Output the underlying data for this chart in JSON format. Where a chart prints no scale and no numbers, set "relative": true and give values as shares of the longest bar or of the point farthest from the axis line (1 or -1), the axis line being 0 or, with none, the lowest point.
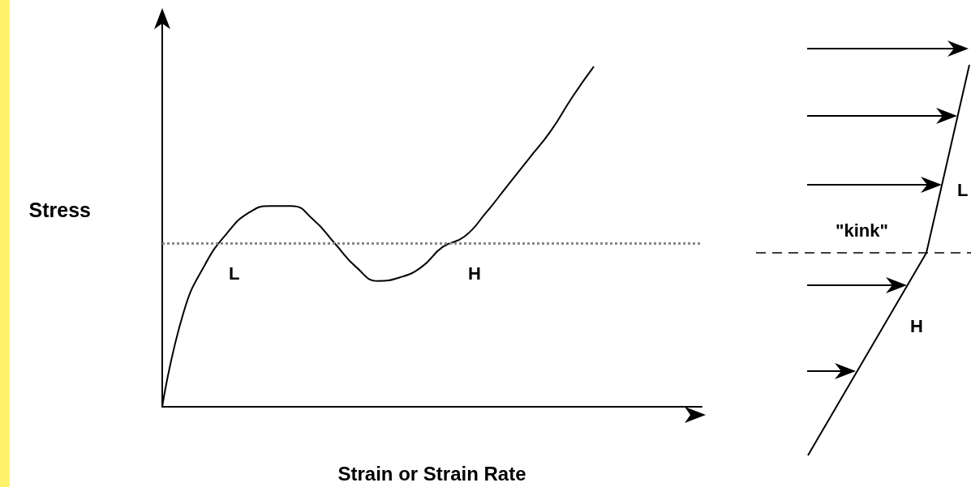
{
  "chart_data": [
    {
      "type": "line",
      "xlabel": "Strain or Strain Rate",
      "ylabel": "Stress",
      "relative": true,
      "marker": "none",
      "grid": false,
      "categories": [
        null,
        null,
        null,
        null,
        null,
        null,
        null,
        null,
        null,
        null,
        null,
        null,
        null,
        null,
        null,
        null,
        null,
        null,
        null,
        null,
        null
      ],
      "series": [
        {
          "color": "#000000",
          "values": [
            0,
            0.28,
            0.42,
            0.51,
            0.57,
            0.59,
            0.59,
            0.55,
            0.48,
            0.41,
            0.37,
            0.38,
            0.41,
            0.47,
            0.5,
            0.57,
            0.65,
            0.73,
            0.81,
            0.91,
            1
          ]
        }
      ],
      "ref_lines": [
        {
          "axis": "y",
          "value": 0.48,
          "line_style": "dotted",
          "color": "#888888"
        }
      ],
      "annotations": [
        "L",
        "H"
      ]
    },
    {
      "type": "other",
      "annotations": [
        "\"kink\"",
        "L",
        "H"
      ]
    }
  ]
}
